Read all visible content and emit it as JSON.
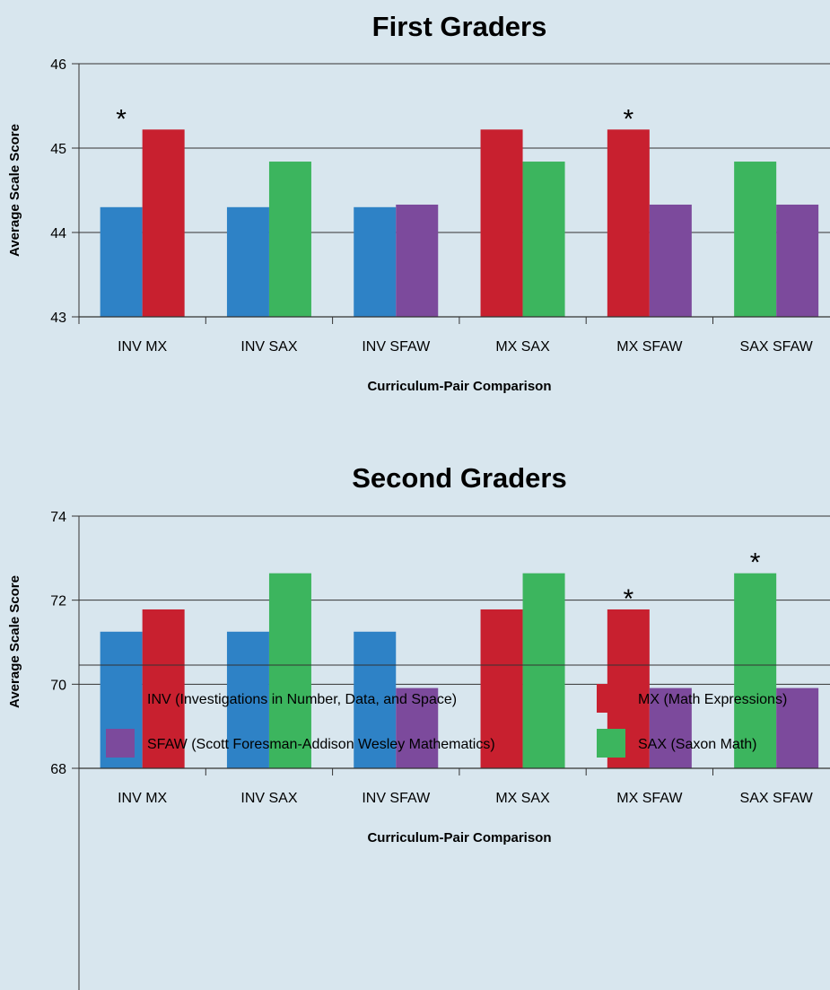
{
  "colors": {
    "background": "#d8e6ee",
    "INV": "#2e82c6",
    "MX": "#c8202f",
    "SFAW": "#7c4a9c",
    "SAX": "#3cb55e"
  },
  "chart_data": [
    {
      "type": "bar",
      "title": "First Graders",
      "xlabel": "Curriculum-Pair Comparison",
      "ylabel": "Average Scale Score",
      "ylim": [
        43,
        46
      ],
      "yticks": [
        "43",
        "44",
        "45",
        "46"
      ],
      "grid": true,
      "categories": [
        "INV MX",
        "INV SAX",
        "INV SFAW",
        "MX SAX",
        "MX SFAW",
        "SAX SFAW"
      ],
      "bars": [
        [
          {
            "curriculum": "INV",
            "value": 44.3
          },
          {
            "curriculum": "MX",
            "value": 45.22
          }
        ],
        [
          {
            "curriculum": "INV",
            "value": 44.3
          },
          {
            "curriculum": "SAX",
            "value": 44.84
          }
        ],
        [
          {
            "curriculum": "INV",
            "value": 44.3
          },
          {
            "curriculum": "SFAW",
            "value": 44.33
          }
        ],
        [
          {
            "curriculum": "MX",
            "value": 45.22
          },
          {
            "curriculum": "SAX",
            "value": 44.84
          }
        ],
        [
          {
            "curriculum": "MX",
            "value": 45.22
          },
          {
            "curriculum": "SFAW",
            "value": 44.33
          }
        ],
        [
          {
            "curriculum": "SAX",
            "value": 44.84
          },
          {
            "curriculum": "SFAW",
            "value": 44.33
          }
        ]
      ],
      "annotations": [
        {
          "category": "INV MX",
          "text": "*"
        },
        {
          "category": "MX SFAW",
          "text": "*"
        }
      ]
    },
    {
      "type": "bar",
      "title": "Second Graders",
      "xlabel": "Curriculum-Pair Comparison",
      "ylabel": "Average Scale Score",
      "ylim": [
        68,
        74
      ],
      "yticks": [
        "68",
        "70",
        "72",
        "74"
      ],
      "grid": true,
      "categories": [
        "INV MX",
        "INV SAX",
        "INV SFAW",
        "MX SAX",
        "MX SFAW",
        "SAX SFAW"
      ],
      "bars": [
        [
          {
            "curriculum": "INV",
            "value": 71.25
          },
          {
            "curriculum": "MX",
            "value": 71.78
          }
        ],
        [
          {
            "curriculum": "INV",
            "value": 71.25
          },
          {
            "curriculum": "SAX",
            "value": 72.64
          }
        ],
        [
          {
            "curriculum": "INV",
            "value": 71.25
          },
          {
            "curriculum": "SFAW",
            "value": 69.91
          }
        ],
        [
          {
            "curriculum": "MX",
            "value": 71.78
          },
          {
            "curriculum": "SAX",
            "value": 72.64
          }
        ],
        [
          {
            "curriculum": "MX",
            "value": 71.78
          },
          {
            "curriculum": "SFAW",
            "value": 69.91
          }
        ],
        [
          {
            "curriculum": "SAX",
            "value": 72.64
          },
          {
            "curriculum": "SFAW",
            "value": 69.91
          }
        ]
      ],
      "annotations": [
        {
          "category": "MX SFAW",
          "text": "*"
        },
        {
          "category": "SAX SFAW",
          "text": "*"
        }
      ]
    }
  ],
  "legend": {
    "placement": "bottom",
    "items": [
      {
        "key": "INV",
        "label": "INV (Investigations in Number, Data, and Space)"
      },
      {
        "key": "MX",
        "label": "MX (Math Expressions)"
      },
      {
        "key": "SFAW",
        "label": "SFAW (Scott Foresman-Addison Wesley Mathematics)"
      },
      {
        "key": "SAX",
        "label": "SAX (Saxon Math)"
      }
    ]
  }
}
